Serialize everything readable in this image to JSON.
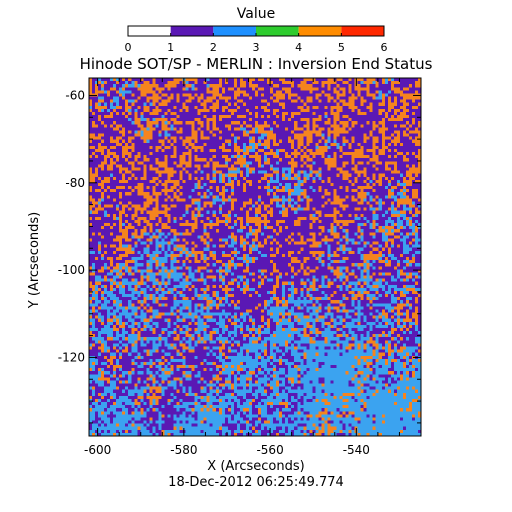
{
  "chart_data": {
    "type": "heatmap",
    "title": "Hinode SOT/SP - MERLIN : Inversion End Status",
    "xlabel": "X (Arcseconds)",
    "ylabel": "Y (Arcseconds)",
    "timestamp": "18-Dec-2012 06:25:49.774",
    "xlim": [
      -602,
      -525
    ],
    "ylim": [
      -138,
      -56
    ],
    "x_ticks": [
      -600,
      -580,
      -560,
      -540
    ],
    "x_tick_labels": [
      "-600",
      "-580",
      "-560",
      "-540"
    ],
    "y_ticks": [
      -60,
      -80,
      -100,
      -120
    ],
    "y_tick_labels": [
      "-60",
      "-80",
      "-100",
      "-120"
    ],
    "colorbar": {
      "title": "Value",
      "range": [
        0,
        6
      ],
      "ticks": [
        0,
        1,
        2,
        3,
        4,
        5,
        6
      ],
      "tick_labels": [
        "0",
        "1",
        "2",
        "3",
        "4",
        "5",
        "6"
      ],
      "bands": [
        {
          "from": 0,
          "to": 1,
          "color": "#ffffff"
        },
        {
          "from": 1,
          "to": 2,
          "color": "#5a18b4"
        },
        {
          "from": 2,
          "to": 3,
          "color": "#1e90ff"
        },
        {
          "from": 3,
          "to": 4,
          "color": "#2ecc2e"
        },
        {
          "from": 4,
          "to": 5,
          "color": "#ff8c00"
        },
        {
          "from": 5,
          "to": 6,
          "color": "#ff2800"
        }
      ]
    },
    "status_colors": {
      "1": "#5a18b4",
      "2": "#3ba3f0",
      "4": "#f5841e"
    },
    "observed_values": [
      1,
      2,
      4
    ],
    "data_grid_note_cols": 110,
    "data_grid_note_rows": 116
  }
}
